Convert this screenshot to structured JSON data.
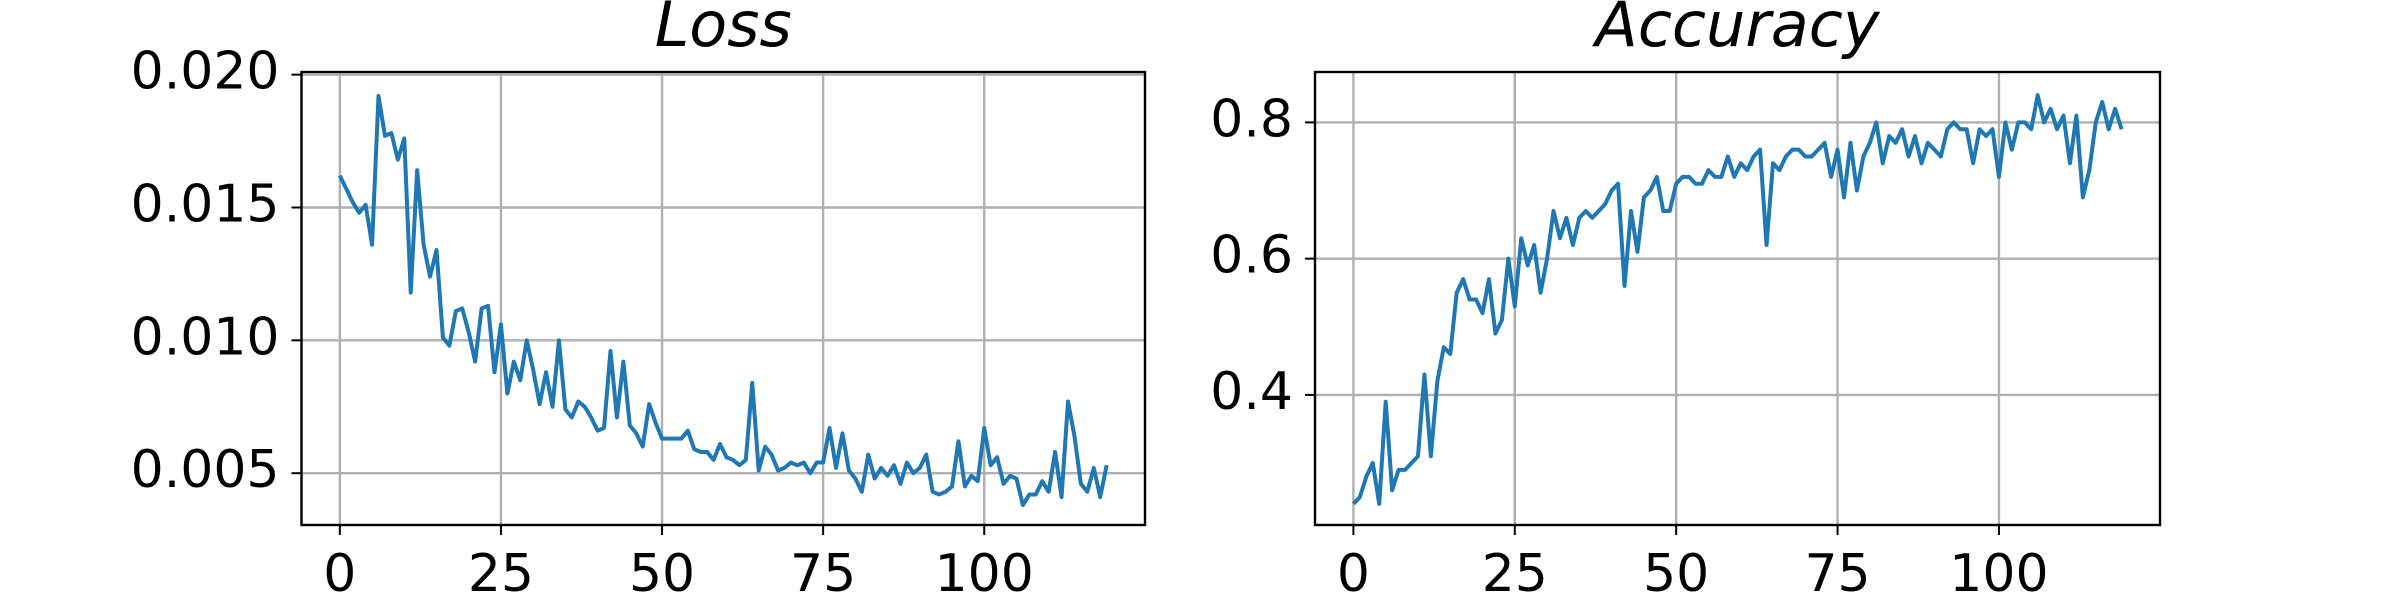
{
  "chart_data": [
    {
      "type": "line",
      "title": "Loss",
      "x": [
        0,
        1,
        2,
        3,
        4,
        5,
        6,
        7,
        8,
        9,
        10,
        11,
        12,
        13,
        14,
        15,
        16,
        17,
        18,
        19,
        20,
        21,
        22,
        23,
        24,
        25,
        26,
        27,
        28,
        29,
        30,
        31,
        32,
        33,
        34,
        35,
        36,
        37,
        38,
        39,
        40,
        41,
        42,
        43,
        44,
        45,
        46,
        47,
        48,
        49,
        50,
        51,
        52,
        53,
        54,
        55,
        56,
        57,
        58,
        59,
        60,
        61,
        62,
        63,
        64,
        65,
        66,
        67,
        68,
        69,
        70,
        71,
        72,
        73,
        74,
        75,
        76,
        77,
        78,
        79,
        80,
        81,
        82,
        83,
        84,
        85,
        86,
        87,
        88,
        89,
        90,
        91,
        92,
        93,
        94,
        95,
        96,
        97,
        98,
        99,
        100,
        101,
        102,
        103,
        104,
        105,
        106,
        107,
        108,
        109,
        110,
        111,
        112,
        113,
        114,
        115,
        116,
        117,
        118,
        119
      ],
      "series": [
        {
          "color": "#1f77b4",
          "values": [
            0.0162,
            0.0157,
            0.0152,
            0.0148,
            0.0151,
            0.0136,
            0.0192,
            0.0177,
            0.0178,
            0.0168,
            0.0176,
            0.0118,
            0.0164,
            0.0136,
            0.0124,
            0.0134,
            0.0101,
            0.0098,
            0.0111,
            0.0112,
            0.0103,
            0.0092,
            0.0112,
            0.0113,
            0.0088,
            0.0106,
            0.008,
            0.0092,
            0.0085,
            0.01,
            0.0089,
            0.0076,
            0.0088,
            0.0075,
            0.01,
            0.0074,
            0.0071,
            0.0077,
            0.0075,
            0.0071,
            0.0066,
            0.0067,
            0.0096,
            0.0071,
            0.0092,
            0.0068,
            0.0065,
            0.006,
            0.0076,
            0.0069,
            0.0063,
            0.0063,
            0.0063,
            0.0063,
            0.0066,
            0.0059,
            0.0058,
            0.0058,
            0.0055,
            0.0061,
            0.0056,
            0.0055,
            0.0053,
            0.0055,
            0.0084,
            0.0051,
            0.006,
            0.0057,
            0.0051,
            0.0052,
            0.0054,
            0.0053,
            0.0054,
            0.005,
            0.0054,
            0.0054,
            0.0067,
            0.0052,
            0.0065,
            0.0051,
            0.0048,
            0.0043,
            0.0057,
            0.0048,
            0.0052,
            0.0049,
            0.0053,
            0.0046,
            0.0054,
            0.005,
            0.0052,
            0.0057,
            0.0043,
            0.0042,
            0.0043,
            0.0045,
            0.0062,
            0.0045,
            0.0049,
            0.0047,
            0.0067,
            0.0053,
            0.0056,
            0.0046,
            0.0049,
            0.0048,
            0.0038,
            0.0042,
            0.0042,
            0.0047,
            0.0043,
            0.0058,
            0.0041,
            0.0077,
            0.0064,
            0.0046,
            0.0043,
            0.0052,
            0.0041,
            0.0053
          ]
        }
      ],
      "xlim": [
        -5.95,
        124.95
      ],
      "xticks": [
        0,
        25,
        50,
        75,
        100
      ],
      "ylim": [
        0.00305,
        0.0201
      ],
      "yticks": [
        {
          "value": 0.005,
          "label": "0.005"
        },
        {
          "value": 0.01,
          "label": "0.010"
        },
        {
          "value": 0.015,
          "label": "0.015"
        },
        {
          "value": 0.02,
          "label": "0.020"
        }
      ],
      "grid": true
    },
    {
      "type": "line",
      "title": "Accuracy",
      "x": [
        0,
        1,
        2,
        3,
        4,
        5,
        6,
        7,
        8,
        9,
        10,
        11,
        12,
        13,
        14,
        15,
        16,
        17,
        18,
        19,
        20,
        21,
        22,
        23,
        24,
        25,
        26,
        27,
        28,
        29,
        30,
        31,
        32,
        33,
        34,
        35,
        36,
        37,
        38,
        39,
        40,
        41,
        42,
        43,
        44,
        45,
        46,
        47,
        48,
        49,
        50,
        51,
        52,
        53,
        54,
        55,
        56,
        57,
        58,
        59,
        60,
        61,
        62,
        63,
        64,
        65,
        66,
        67,
        68,
        69,
        70,
        71,
        72,
        73,
        74,
        75,
        76,
        77,
        78,
        79,
        80,
        81,
        82,
        83,
        84,
        85,
        86,
        87,
        88,
        89,
        90,
        91,
        92,
        93,
        94,
        95,
        96,
        97,
        98,
        99,
        100,
        101,
        102,
        103,
        104,
        105,
        106,
        107,
        108,
        109,
        110,
        111,
        112,
        113,
        114,
        115,
        116,
        117,
        118,
        119
      ],
      "series": [
        {
          "color": "#1f77b4",
          "values": [
            0.24,
            0.25,
            0.28,
            0.3,
            0.24,
            0.39,
            0.26,
            0.29,
            0.29,
            0.3,
            0.31,
            0.43,
            0.31,
            0.42,
            0.47,
            0.46,
            0.55,
            0.57,
            0.54,
            0.54,
            0.52,
            0.57,
            0.49,
            0.51,
            0.6,
            0.53,
            0.63,
            0.59,
            0.62,
            0.55,
            0.6,
            0.67,
            0.63,
            0.66,
            0.62,
            0.66,
            0.67,
            0.66,
            0.67,
            0.68,
            0.7,
            0.71,
            0.56,
            0.67,
            0.61,
            0.69,
            0.7,
            0.72,
            0.67,
            0.67,
            0.71,
            0.72,
            0.72,
            0.71,
            0.71,
            0.73,
            0.72,
            0.72,
            0.75,
            0.72,
            0.74,
            0.73,
            0.75,
            0.76,
            0.62,
            0.74,
            0.73,
            0.75,
            0.76,
            0.76,
            0.75,
            0.75,
            0.76,
            0.77,
            0.72,
            0.76,
            0.69,
            0.77,
            0.7,
            0.75,
            0.77,
            0.8,
            0.74,
            0.78,
            0.77,
            0.79,
            0.75,
            0.78,
            0.74,
            0.77,
            0.76,
            0.75,
            0.79,
            0.8,
            0.79,
            0.79,
            0.74,
            0.79,
            0.78,
            0.79,
            0.72,
            0.8,
            0.76,
            0.8,
            0.8,
            0.79,
            0.84,
            0.8,
            0.82,
            0.79,
            0.81,
            0.74,
            0.81,
            0.69,
            0.73,
            0.8,
            0.83,
            0.79,
            0.82,
            0.79
          ]
        }
      ],
      "xlim": [
        -5.95,
        124.95
      ],
      "xticks": [
        0,
        25,
        50,
        75,
        100
      ],
      "ylim": [
        0.209,
        0.874
      ],
      "yticks": [
        0.4,
        0.6,
        0.8
      ],
      "grid": true
    }
  ]
}
